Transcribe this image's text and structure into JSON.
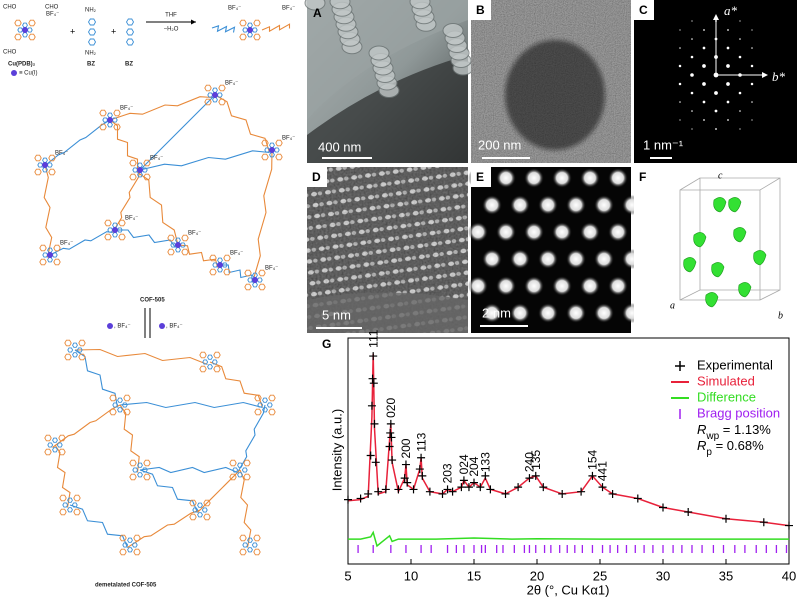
{
  "schematic": {
    "reactant_label": "Cu(PDB)₂",
    "cu_legend": "≡ Cu(I)",
    "bz_labels": [
      "BZ",
      "BZ"
    ],
    "plus": "+",
    "conditions": [
      "THF",
      "−H₂O"
    ],
    "cho": "CHO",
    "nh2": "NH₂",
    "bf4": "BF₄⁻",
    "framework_label": "COF-505",
    "exchange_labels": [
      ", BF₄⁻",
      ", BF₄⁻"
    ],
    "demetalated_label": "demetalated COF-505"
  },
  "panels": [
    {
      "letter": "A",
      "scale_bar": "400 nm"
    },
    {
      "letter": "B",
      "scale_bar": "200 nm"
    },
    {
      "letter": "C",
      "scale_bar": "1 nm⁻¹",
      "axes": [
        "a*",
        "b*"
      ]
    },
    {
      "letter": "D",
      "scale_bar": "5 nm"
    },
    {
      "letter": "E",
      "scale_bar": "2 nm"
    },
    {
      "letter": "F",
      "axes": [
        "c",
        "a",
        "b"
      ]
    }
  ],
  "chart_data": {
    "type": "line",
    "panel_label": "G",
    "y_label": "Intensity (a.u.)",
    "x_label": "2θ (°, Cu Kα1)",
    "xlim": [
      5,
      40
    ],
    "xticks": [
      5,
      10,
      15,
      20,
      25,
      30,
      35,
      40
    ],
    "ylim": [
      0,
      100
    ],
    "series": [
      {
        "name": "Experimental",
        "color": "#000000",
        "marker": "+",
        "x": [
          5,
          6,
          6.6,
          6.8,
          6.9,
          6.95,
          7.0,
          7.05,
          7.1,
          7.2,
          7.4,
          8.0,
          8.3,
          8.35,
          8.4,
          8.45,
          8.5,
          9.0,
          9.5,
          9.6,
          9.7,
          10.2,
          10.7,
          10.8,
          10.9,
          11.5,
          12.5,
          12.9,
          13.3,
          14.0,
          14.2,
          14.6,
          15.0,
          15.5,
          15.9,
          16.3,
          17.5,
          18.5,
          19.4,
          19.9,
          20.5,
          22,
          23.5,
          24.4,
          25.2,
          26,
          28,
          30,
          32,
          35,
          38,
          40
        ],
        "values": [
          28.5,
          29,
          31,
          48,
          70,
          82,
          92,
          80,
          62,
          45,
          32,
          33,
          52,
          58,
          62,
          56,
          46,
          33,
          38,
          44,
          36,
          33,
          42,
          47,
          39,
          32,
          31,
          33,
          32,
          34,
          37,
          34,
          36,
          34,
          39,
          33,
          31,
          34,
          38,
          39,
          34,
          31,
          32,
          39,
          34,
          31,
          29,
          25,
          23,
          20,
          18.5,
          17
        ]
      },
      {
        "name": "Simulated",
        "color": "#e8213a",
        "x": [
          5,
          6,
          6.6,
          6.9,
          7.0,
          7.1,
          7.4,
          8.0,
          8.3,
          8.4,
          8.5,
          9.0,
          9.5,
          9.6,
          9.7,
          10.2,
          10.7,
          10.8,
          10.9,
          11.5,
          12.5,
          12.9,
          13.3,
          14.0,
          14.2,
          14.6,
          15.0,
          15.5,
          15.9,
          16.3,
          17.5,
          18.5,
          19.4,
          19.9,
          20.5,
          22,
          23.5,
          24.4,
          25.2,
          26,
          28,
          30,
          32,
          35,
          38,
          40
        ],
        "values": [
          28,
          28.5,
          30,
          65,
          93,
          60,
          31,
          32,
          55,
          62,
          45,
          32,
          38,
          44,
          35,
          33,
          42,
          47,
          38,
          32,
          31,
          33,
          32,
          34,
          37,
          34,
          36,
          34,
          38,
          33,
          31,
          34,
          38,
          39,
          34,
          31,
          32,
          39,
          34,
          31,
          29,
          25,
          23,
          20,
          18.5,
          17
        ]
      },
      {
        "name": "Difference",
        "color": "#33dd22",
        "x": [
          5,
          6,
          6.8,
          7.0,
          7.3,
          8.3,
          8.5,
          9,
          10,
          12,
          15,
          18,
          20,
          25,
          30,
          35,
          40
        ],
        "values": [
          11,
          11,
          12,
          14,
          8,
          12.5,
          10,
          11,
          11,
          11,
          11.5,
          11,
          11.2,
          11,
          11,
          11,
          11
        ]
      }
    ],
    "bragg": {
      "name": "Bragg position",
      "color": "#a020f0",
      "x": [
        5.8,
        7.0,
        8.4,
        9.6,
        10.8,
        11.6,
        12.9,
        13.6,
        14.2,
        15.0,
        15.6,
        15.9,
        16.8,
        17.3,
        18.2,
        19.0,
        19.4,
        19.9,
        20.6,
        21.1,
        21.8,
        22.4,
        23.0,
        23.6,
        24.4,
        25.2,
        25.8,
        26.4,
        27.1,
        27.8,
        28.5,
        29.2,
        30.0,
        30.8,
        31.5,
        32.3,
        33.1,
        34.0,
        34.8,
        35.7,
        36.5,
        37.4,
        38.2,
        39.0,
        39.8
      ]
    },
    "peak_labels": [
      {
        "label": "111",
        "x": 7.0
      },
      {
        "label": "020",
        "x": 8.4
      },
      {
        "label": "200",
        "x": 9.6
      },
      {
        "label": "113",
        "x": 10.8
      },
      {
        "label": "203",
        "x": 12.9
      },
      {
        "label": "024",
        "x": 14.2
      },
      {
        "label": "204",
        "x": 15.0
      },
      {
        "label": "133",
        "x": 15.9
      },
      {
        "label": "240",
        "x": 19.4
      },
      {
        "label": "135",
        "x": 19.9
      },
      {
        "label": "154",
        "x": 24.4
      },
      {
        "label": "441",
        "x": 25.2
      }
    ],
    "stats": [
      {
        "symbol": "R",
        "subscript": "wp",
        "value_text": " = 1.13%"
      },
      {
        "symbol": "R",
        "subscript": "p",
        "value_text": " = 0.68%"
      }
    ]
  }
}
